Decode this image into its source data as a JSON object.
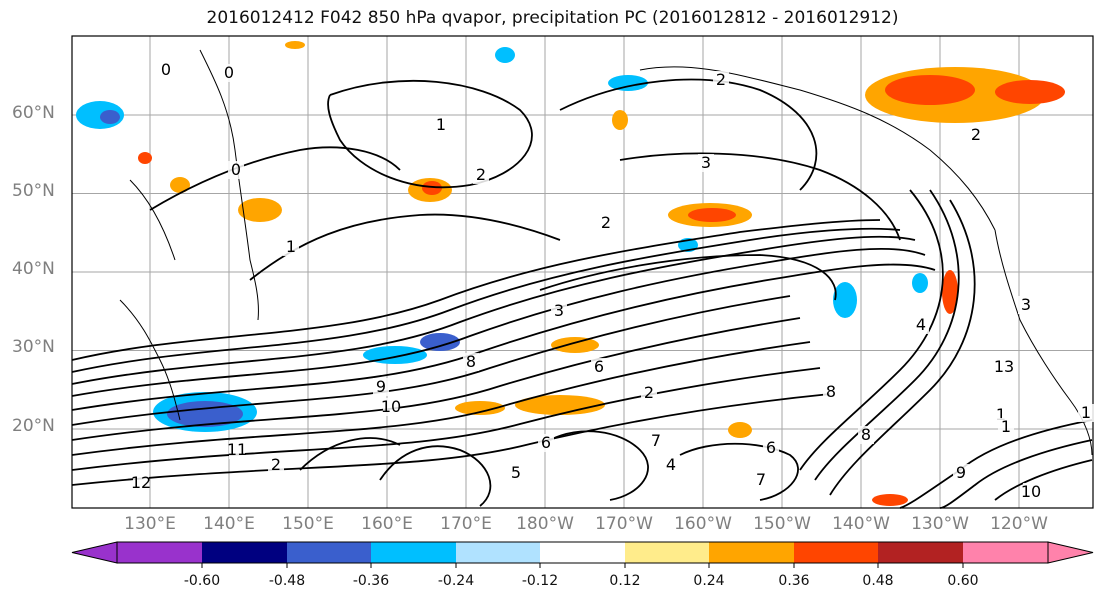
{
  "title": "2016012412 F042 850 hPa qvapor, precipitation PC (2016012812 - 2016012912)",
  "lat_labels": [
    "60°N",
    "50°N",
    "40°N",
    "30°N",
    "20°N"
  ],
  "lon_labels": [
    "130°E",
    "140°E",
    "150°E",
    "160°E",
    "170°E",
    "180°W",
    "170°W",
    "160°W",
    "150°W",
    "140°W",
    "130°W",
    "120°W"
  ],
  "contour_labels": [
    "0",
    "0",
    "0",
    "1",
    "1",
    "1",
    "2",
    "2",
    "2",
    "2",
    "3",
    "3",
    "3",
    "6",
    "8",
    "9",
    "10",
    "11",
    "12",
    "6",
    "7",
    "8",
    "4",
    "5",
    "6",
    "7",
    "8",
    "9",
    "10",
    "13",
    "1",
    "1",
    "2",
    "2",
    "4"
  ],
  "colorbar": {
    "ticks": [
      "-0.60",
      "-0.48",
      "-0.36",
      "-0.24",
      "-0.12",
      "0.12",
      "0.24",
      "0.36",
      "0.48",
      "0.60"
    ],
    "colors": [
      "#9932CC",
      "#000080",
      "#3A5FCD",
      "#00BFFF",
      "#B0E2FF",
      "#FFFFFF",
      "#FFEC8B",
      "#FFA500",
      "#FF4500",
      "#B22222",
      "#FF82AB"
    ]
  }
}
